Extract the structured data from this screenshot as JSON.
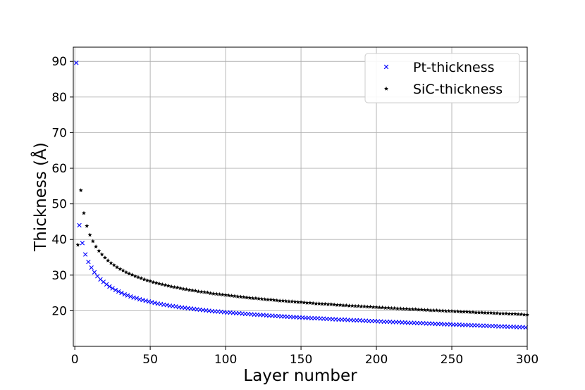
{
  "chart_data": {
    "type": "scatter",
    "title": "",
    "xlabel": "Layer number",
    "ylabel": "Thickness (Å)",
    "xlim": [
      -1,
      300
    ],
    "ylim": [
      10,
      94
    ],
    "xticks": [
      0,
      50,
      100,
      150,
      200,
      250,
      300
    ],
    "yticks": [
      20,
      30,
      40,
      50,
      60,
      70,
      80,
      90
    ],
    "grid": true,
    "legend_position": "top-right",
    "series": [
      {
        "name": "Pt-thickness",
        "marker": "x",
        "color": "#0000ff",
        "x": [
          1,
          3,
          5,
          7,
          9,
          11,
          13,
          15,
          17,
          19,
          21,
          23,
          25,
          27,
          29,
          31,
          33,
          35,
          37,
          39,
          41,
          43,
          45,
          47,
          49,
          51,
          53,
          55,
          57,
          59,
          61,
          63,
          65,
          67,
          69,
          71,
          73,
          75,
          77,
          79,
          81,
          83,
          85,
          87,
          89,
          91,
          93,
          95,
          97,
          99,
          101,
          103,
          105,
          107,
          109,
          111,
          113,
          115,
          117,
          119,
          121,
          123,
          125,
          127,
          129,
          131,
          133,
          135,
          137,
          139,
          141,
          143,
          145,
          147,
          149,
          151,
          153,
          155,
          157,
          159,
          161,
          163,
          165,
          167,
          169,
          171,
          173,
          175,
          177,
          179,
          181,
          183,
          185,
          187,
          189,
          191,
          193,
          195,
          197,
          199,
          201,
          203,
          205,
          207,
          209,
          211,
          213,
          215,
          217,
          219,
          221,
          223,
          225,
          227,
          229,
          231,
          233,
          235,
          237,
          239,
          241,
          243,
          245,
          247,
          249,
          251,
          253,
          255,
          257,
          259,
          261,
          263,
          265,
          267,
          269,
          271,
          273,
          275,
          277,
          279,
          281,
          283,
          285,
          287,
          289,
          291,
          293,
          295,
          297,
          299
        ],
        "y": [
          89.6,
          44.0,
          39.0,
          35.8,
          33.7,
          32.1,
          30.8,
          29.7,
          28.8,
          28.1,
          27.4,
          26.8,
          26.3,
          25.8,
          25.4,
          25.0,
          24.6,
          24.3,
          24.0,
          23.7,
          23.5,
          23.2,
          23.0,
          22.8,
          22.6,
          22.4,
          22.2,
          22.0,
          21.9,
          21.7,
          21.6,
          21.4,
          21.3,
          21.2,
          21.0,
          20.9,
          20.8,
          20.7,
          20.6,
          20.5,
          20.4,
          20.3,
          20.2,
          20.1,
          20.0,
          19.9,
          19.8,
          19.8,
          19.7,
          19.6,
          19.5,
          19.5,
          19.4,
          19.3,
          19.3,
          19.2,
          19.1,
          19.1,
          19.0,
          18.9,
          18.9,
          18.8,
          18.8,
          18.7,
          18.6,
          18.6,
          18.5,
          18.5,
          18.4,
          18.4,
          18.3,
          18.3,
          18.2,
          18.2,
          18.1,
          18.1,
          18.0,
          18.0,
          17.9,
          17.9,
          17.9,
          17.8,
          17.8,
          17.7,
          17.7,
          17.6,
          17.6,
          17.5,
          17.5,
          17.5,
          17.4,
          17.4,
          17.3,
          17.3,
          17.3,
          17.2,
          17.2,
          17.1,
          17.1,
          17.1,
          17.0,
          17.0,
          16.9,
          16.9,
          16.9,
          16.8,
          16.8,
          16.8,
          16.7,
          16.7,
          16.6,
          16.6,
          16.6,
          16.5,
          16.5,
          16.5,
          16.4,
          16.4,
          16.4,
          16.3,
          16.3,
          16.3,
          16.2,
          16.2,
          16.2,
          16.1,
          16.1,
          16.1,
          16.0,
          16.0,
          16.0,
          15.9,
          15.9,
          15.9,
          15.8,
          15.8,
          15.8,
          15.7,
          15.7,
          15.7,
          15.6,
          15.6,
          15.6,
          15.5,
          15.5,
          15.5,
          15.4,
          15.4,
          15.4,
          15.3
        ]
      },
      {
        "name": "SiC-thickness",
        "marker": "*",
        "color": "#000000",
        "x": [
          2,
          4,
          6,
          8,
          10,
          12,
          14,
          16,
          18,
          20,
          22,
          24,
          26,
          28,
          30,
          32,
          34,
          36,
          38,
          40,
          42,
          44,
          46,
          48,
          50,
          52,
          54,
          56,
          58,
          60,
          62,
          64,
          66,
          68,
          70,
          72,
          74,
          76,
          78,
          80,
          82,
          84,
          86,
          88,
          90,
          92,
          94,
          96,
          98,
          100,
          102,
          104,
          106,
          108,
          110,
          112,
          114,
          116,
          118,
          120,
          122,
          124,
          126,
          128,
          130,
          132,
          134,
          136,
          138,
          140,
          142,
          144,
          146,
          148,
          150,
          152,
          154,
          156,
          158,
          160,
          162,
          164,
          166,
          168,
          170,
          172,
          174,
          176,
          178,
          180,
          182,
          184,
          186,
          188,
          190,
          192,
          194,
          196,
          198,
          200,
          202,
          204,
          206,
          208,
          210,
          212,
          214,
          216,
          218,
          220,
          222,
          224,
          226,
          228,
          230,
          232,
          234,
          236,
          238,
          240,
          242,
          244,
          246,
          248,
          250,
          252,
          254,
          256,
          258,
          260,
          262,
          264,
          266,
          268,
          270,
          272,
          274,
          276,
          278,
          280,
          282,
          284,
          286,
          288,
          290,
          292,
          294,
          296,
          298,
          300
        ],
        "y": [
          38.5,
          53.8,
          47.4,
          43.8,
          41.3,
          39.5,
          38.0,
          36.8,
          35.8,
          34.9,
          34.1,
          33.4,
          32.8,
          32.2,
          31.7,
          31.3,
          30.8,
          30.4,
          30.1,
          29.7,
          29.4,
          29.1,
          28.8,
          28.5,
          28.3,
          28.0,
          27.8,
          27.6,
          27.4,
          27.2,
          27.0,
          26.8,
          26.6,
          26.5,
          26.3,
          26.1,
          26.0,
          25.8,
          25.7,
          25.6,
          25.4,
          25.3,
          25.2,
          25.1,
          24.9,
          24.8,
          24.7,
          24.6,
          24.5,
          24.4,
          24.3,
          24.2,
          24.1,
          24.0,
          23.9,
          23.8,
          23.7,
          23.6,
          23.5,
          23.5,
          23.4,
          23.3,
          23.2,
          23.1,
          23.1,
          23.0,
          22.9,
          22.8,
          22.8,
          22.7,
          22.6,
          22.6,
          22.5,
          22.4,
          22.4,
          22.3,
          22.2,
          22.2,
          22.1,
          22.0,
          22.0,
          21.9,
          21.9,
          21.8,
          21.8,
          21.7,
          21.6,
          21.6,
          21.5,
          21.5,
          21.4,
          21.4,
          21.3,
          21.3,
          21.2,
          21.2,
          21.1,
          21.1,
          21.0,
          21.0,
          20.9,
          20.9,
          20.8,
          20.8,
          20.7,
          20.7,
          20.6,
          20.6,
          20.5,
          20.5,
          20.4,
          20.4,
          20.4,
          20.3,
          20.3,
          20.2,
          20.2,
          20.1,
          20.1,
          20.1,
          20.0,
          20.0,
          19.9,
          19.9,
          19.9,
          19.8,
          19.8,
          19.7,
          19.7,
          19.7,
          19.6,
          19.6,
          19.5,
          19.5,
          19.5,
          19.4,
          19.4,
          19.4,
          19.3,
          19.3,
          19.2,
          19.2,
          19.2,
          19.1,
          19.1,
          19.1,
          19.0,
          19.0,
          18.9,
          18.9
        ]
      }
    ]
  }
}
